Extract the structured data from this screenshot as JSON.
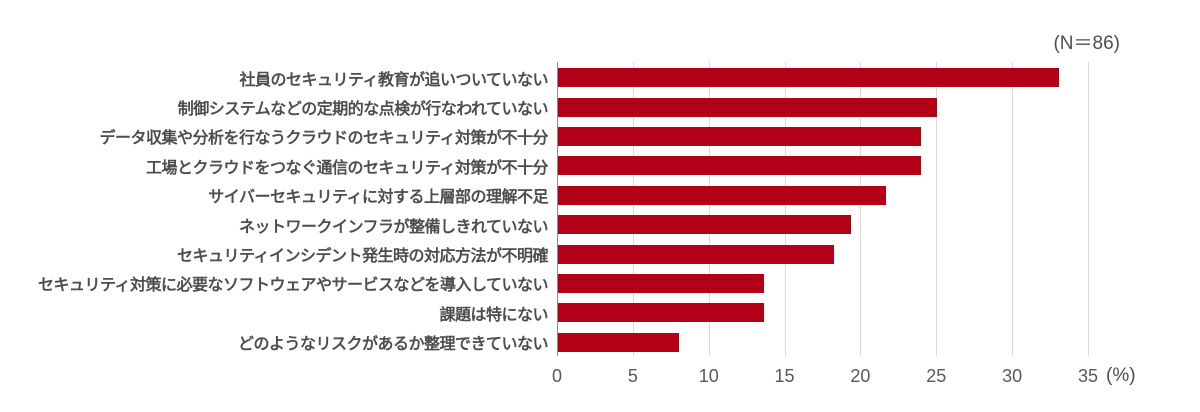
{
  "annotation": "(N＝86)",
  "axis": {
    "unit_label": "(%)",
    "ticks": [
      0,
      5,
      10,
      15,
      20,
      25,
      30,
      35
    ],
    "max": 35
  },
  "colors": {
    "bar": "#b20016",
    "gridline": "#d9d9d9",
    "axis_line": "#8c8c8c",
    "tick_text": "#595959",
    "label_text": "#4d4d4d"
  },
  "chart_data": {
    "type": "bar",
    "orientation": "horizontal",
    "title": "",
    "annotation": "(N＝86)",
    "xlabel": "(%)",
    "xlim": [
      0,
      35
    ],
    "grid": true,
    "categories": [
      "社員のセキュリティ教育が追いついていない",
      "制御システムなどの定期的な点検が行なわれていない",
      "データ収集や分析を行なうクラウドのセキュリティ対策が不十分",
      "工場とクラウドをつなぐ通信のセキュリティ対策が不十分",
      "サイバーセキュリティに対する上層部の理解不足",
      "ネットワークインフラが整備しきれていない",
      "セキュリティインシデント発生時の対応方法が不明確",
      "セキュリティ対策に必要なソフトウェアやサービスなどを導入していない",
      "課題は特にない",
      "どのようなリスクがあるか整理できていない"
    ],
    "values": [
      33.0,
      25.0,
      23.9,
      23.9,
      21.6,
      19.3,
      18.2,
      13.6,
      13.6,
      8.0
    ]
  }
}
